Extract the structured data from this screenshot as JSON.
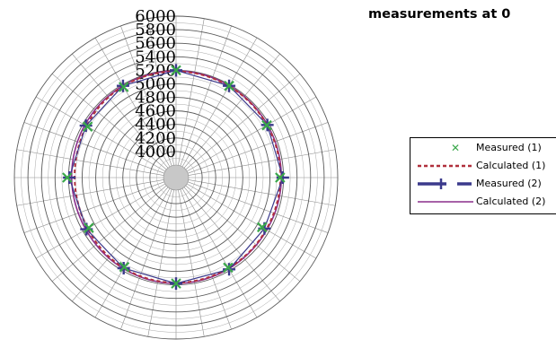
{
  "chart_data": {
    "type": "polar-line",
    "title": "measurements at 0",
    "radial_axis": {
      "min": 3800,
      "max": 6000,
      "ticks": [
        4000,
        4200,
        4400,
        4600,
        4800,
        5000,
        5200,
        5400,
        5600,
        5800,
        6000
      ],
      "labels": [
        "4000",
        "4200",
        "4400",
        "4600",
        "4800",
        "5000",
        "5200",
        "5400",
        "5600",
        "5800",
        "6000"
      ]
    },
    "angular_gridlines_deg": 10,
    "grid": true,
    "legend_position": "right",
    "series": [
      {
        "name": "Measured (1)",
        "style": "markers-x",
        "color": "#3aa84a",
        "angles_deg": [
          0,
          30,
          60,
          90,
          120,
          150,
          180,
          210,
          240,
          270,
          300,
          330
        ],
        "values": [
          5200,
          5180,
          5160,
          5150,
          5080,
          5150,
          5180,
          5140,
          5100,
          5220,
          5120,
          5160
        ]
      },
      {
        "name": "Calculated (1)",
        "style": "dashed",
        "color": "#b0303c",
        "angles_deg": [
          0,
          15,
          30,
          45,
          60,
          75,
          90,
          105,
          120,
          135,
          150,
          165,
          180,
          195,
          210,
          225,
          240,
          255,
          270,
          285,
          300,
          315,
          330,
          345
        ],
        "values": [
          5185,
          5180,
          5175,
          5170,
          5165,
          5160,
          5155,
          5150,
          5150,
          5155,
          5160,
          5165,
          5170,
          5165,
          5160,
          5140,
          5120,
          5110,
          5110,
          5120,
          5140,
          5160,
          5175,
          5182
        ]
      },
      {
        "name": "Measured (2)",
        "style": "line-plus-markers",
        "color": "#3b3a8c",
        "angles_deg": [
          0,
          30,
          60,
          90,
          120,
          150,
          180,
          210,
          240,
          270,
          300,
          330
        ],
        "values": [
          5200,
          5180,
          5170,
          5190,
          5120,
          5180,
          5180,
          5160,
          5140,
          5190,
          5150,
          5180
        ]
      },
      {
        "name": "Calculated (2)",
        "style": "solid",
        "color": "#8a2f8c",
        "angles_deg": [
          0,
          15,
          30,
          45,
          60,
          75,
          90,
          105,
          120,
          135,
          150,
          165,
          180,
          195,
          210,
          225,
          240,
          255,
          270,
          285,
          300,
          315,
          330,
          345
        ],
        "values": [
          5190,
          5188,
          5182,
          5178,
          5172,
          5170,
          5168,
          5165,
          5160,
          5163,
          5170,
          5175,
          5178,
          5175,
          5168,
          5160,
          5150,
          5150,
          5155,
          5160,
          5168,
          5175,
          5182,
          5188
        ]
      }
    ]
  }
}
